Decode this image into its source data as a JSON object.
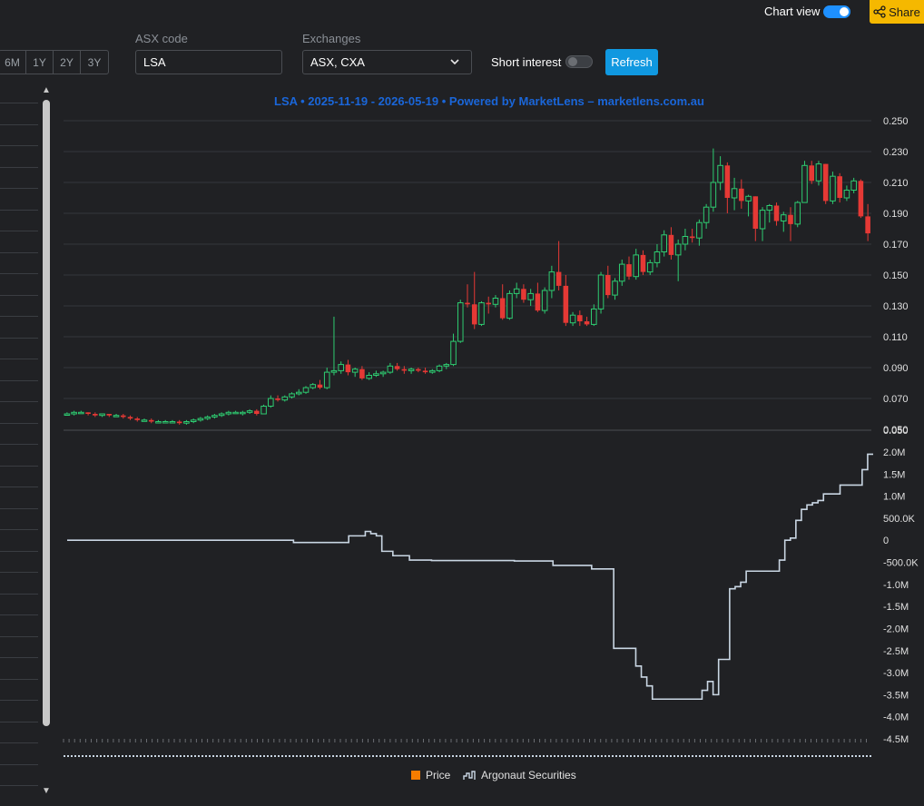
{
  "header": {
    "chart_view_label": "Chart view",
    "chart_view_on": true,
    "share_label": "Share"
  },
  "periods": [
    "6M",
    "1Y",
    "2Y",
    "3Y"
  ],
  "asx_code": {
    "label": "ASX code",
    "value": "LSA"
  },
  "exchanges": {
    "label": "Exchanges",
    "value": "ASX, CXA"
  },
  "short_interest": {
    "label": "Short interest",
    "on": false
  },
  "refresh_label": "Refresh",
  "colors": {
    "accent": "#1098e0",
    "share": "#f5b800",
    "up": "#2ecc71",
    "down": "#e53935",
    "title": "#1a66d9",
    "line": "#c9d6e3"
  },
  "chart_data": {
    "type": "candlestick",
    "title": "LSA • 2025-11-19 - 2026-05-19 • Powered by MarketLens – marketlens.com.au",
    "price_axis": {
      "ylim": [
        0.05,
        0.25
      ],
      "ticks": [
        "0.250",
        "0.230",
        "0.210",
        "0.190",
        "0.170",
        "0.150",
        "0.130",
        "0.110",
        "0.090",
        "0.070",
        "0.050"
      ]
    },
    "volume_axis_tick": "0.050",
    "holder_axis": {
      "ylim": [
        -4500000,
        2000000
      ],
      "ticks": [
        "2.0M",
        "1.5M",
        "1.0M",
        "500.0K",
        "0",
        "-500.0K",
        "-1.0M",
        "-1.5M",
        "-2.0M",
        "-2.5M",
        "-3.0M",
        "-3.5M",
        "-4.0M",
        "-4.5M"
      ]
    },
    "candles": [
      [
        0.06,
        0.061,
        0.059,
        0.06
      ],
      [
        0.06,
        0.062,
        0.059,
        0.061
      ],
      [
        0.061,
        0.062,
        0.06,
        0.061
      ],
      [
        0.061,
        0.061,
        0.059,
        0.06
      ],
      [
        0.06,
        0.061,
        0.058,
        0.059
      ],
      [
        0.059,
        0.06,
        0.058,
        0.06
      ],
      [
        0.06,
        0.06,
        0.058,
        0.059
      ],
      [
        0.059,
        0.06,
        0.058,
        0.059
      ],
      [
        0.059,
        0.06,
        0.057,
        0.058
      ],
      [
        0.058,
        0.059,
        0.056,
        0.057
      ],
      [
        0.057,
        0.058,
        0.055,
        0.056
      ],
      [
        0.056,
        0.057,
        0.055,
        0.056
      ],
      [
        0.056,
        0.057,
        0.054,
        0.055
      ],
      [
        0.055,
        0.056,
        0.054,
        0.055
      ],
      [
        0.055,
        0.056,
        0.054,
        0.055
      ],
      [
        0.055,
        0.056,
        0.054,
        0.055
      ],
      [
        0.055,
        0.056,
        0.053,
        0.054
      ],
      [
        0.054,
        0.056,
        0.053,
        0.055
      ],
      [
        0.055,
        0.057,
        0.054,
        0.056
      ],
      [
        0.056,
        0.058,
        0.055,
        0.057
      ],
      [
        0.057,
        0.059,
        0.056,
        0.058
      ],
      [
        0.058,
        0.06,
        0.057,
        0.059
      ],
      [
        0.059,
        0.061,
        0.058,
        0.06
      ],
      [
        0.06,
        0.062,
        0.059,
        0.061
      ],
      [
        0.061,
        0.062,
        0.06,
        0.061
      ],
      [
        0.061,
        0.062,
        0.059,
        0.061
      ],
      [
        0.061,
        0.063,
        0.06,
        0.062
      ],
      [
        0.062,
        0.063,
        0.059,
        0.06
      ],
      [
        0.06,
        0.066,
        0.06,
        0.065
      ],
      [
        0.065,
        0.072,
        0.064,
        0.07
      ],
      [
        0.07,
        0.072,
        0.068,
        0.069
      ],
      [
        0.069,
        0.072,
        0.068,
        0.071
      ],
      [
        0.071,
        0.074,
        0.07,
        0.073
      ],
      [
        0.073,
        0.076,
        0.072,
        0.074
      ],
      [
        0.074,
        0.078,
        0.073,
        0.077
      ],
      [
        0.077,
        0.08,
        0.076,
        0.079
      ],
      [
        0.079,
        0.082,
        0.076,
        0.077
      ],
      [
        0.077,
        0.09,
        0.076,
        0.087
      ],
      [
        0.087,
        0.123,
        0.085,
        0.088
      ],
      [
        0.088,
        0.094,
        0.086,
        0.092
      ],
      [
        0.092,
        0.095,
        0.085,
        0.087
      ],
      [
        0.087,
        0.09,
        0.084,
        0.089
      ],
      [
        0.089,
        0.091,
        0.082,
        0.083
      ],
      [
        0.083,
        0.087,
        0.082,
        0.085
      ],
      [
        0.085,
        0.088,
        0.084,
        0.086
      ],
      [
        0.086,
        0.088,
        0.084,
        0.087
      ],
      [
        0.087,
        0.093,
        0.086,
        0.091
      ],
      [
        0.091,
        0.093,
        0.088,
        0.089
      ],
      [
        0.089,
        0.091,
        0.086,
        0.088
      ],
      [
        0.088,
        0.09,
        0.086,
        0.089
      ],
      [
        0.089,
        0.09,
        0.087,
        0.088
      ],
      [
        0.088,
        0.09,
        0.086,
        0.087
      ],
      [
        0.087,
        0.089,
        0.086,
        0.088
      ],
      [
        0.088,
        0.092,
        0.087,
        0.091
      ],
      [
        0.091,
        0.093,
        0.089,
        0.092
      ],
      [
        0.092,
        0.112,
        0.091,
        0.107
      ],
      [
        0.107,
        0.134,
        0.106,
        0.132
      ],
      [
        0.132,
        0.144,
        0.129,
        0.131
      ],
      [
        0.131,
        0.152,
        0.115,
        0.118
      ],
      [
        0.118,
        0.133,
        0.117,
        0.132
      ],
      [
        0.132,
        0.136,
        0.125,
        0.131
      ],
      [
        0.131,
        0.137,
        0.129,
        0.135
      ],
      [
        0.135,
        0.144,
        0.121,
        0.122
      ],
      [
        0.122,
        0.14,
        0.121,
        0.138
      ],
      [
        0.138,
        0.145,
        0.135,
        0.141
      ],
      [
        0.141,
        0.144,
        0.132,
        0.134
      ],
      [
        0.134,
        0.141,
        0.13,
        0.138
      ],
      [
        0.138,
        0.145,
        0.126,
        0.127
      ],
      [
        0.127,
        0.142,
        0.125,
        0.14
      ],
      [
        0.14,
        0.156,
        0.135,
        0.152
      ],
      [
        0.152,
        0.172,
        0.14,
        0.143
      ],
      [
        0.143,
        0.15,
        0.117,
        0.119
      ],
      [
        0.119,
        0.126,
        0.117,
        0.124
      ],
      [
        0.124,
        0.127,
        0.117,
        0.12
      ],
      [
        0.12,
        0.123,
        0.117,
        0.118
      ],
      [
        0.118,
        0.131,
        0.117,
        0.128
      ],
      [
        0.128,
        0.152,
        0.125,
        0.15
      ],
      [
        0.15,
        0.156,
        0.135,
        0.137
      ],
      [
        0.137,
        0.148,
        0.134,
        0.146
      ],
      [
        0.146,
        0.16,
        0.143,
        0.157
      ],
      [
        0.157,
        0.162,
        0.147,
        0.149
      ],
      [
        0.149,
        0.167,
        0.147,
        0.163
      ],
      [
        0.163,
        0.166,
        0.15,
        0.152
      ],
      [
        0.152,
        0.16,
        0.15,
        0.158
      ],
      [
        0.158,
        0.17,
        0.155,
        0.165
      ],
      [
        0.165,
        0.179,
        0.162,
        0.176
      ],
      [
        0.176,
        0.181,
        0.16,
        0.163
      ],
      [
        0.163,
        0.173,
        0.146,
        0.17
      ],
      [
        0.17,
        0.18,
        0.166,
        0.175
      ],
      [
        0.175,
        0.18,
        0.171,
        0.174
      ],
      [
        0.174,
        0.186,
        0.169,
        0.184
      ],
      [
        0.184,
        0.196,
        0.18,
        0.194
      ],
      [
        0.194,
        0.232,
        0.191,
        0.21
      ],
      [
        0.21,
        0.227,
        0.205,
        0.221
      ],
      [
        0.221,
        0.223,
        0.19,
        0.2
      ],
      [
        0.2,
        0.213,
        0.192,
        0.206
      ],
      [
        0.206,
        0.212,
        0.193,
        0.198
      ],
      [
        0.198,
        0.202,
        0.188,
        0.201
      ],
      [
        0.201,
        0.201,
        0.172,
        0.18
      ],
      [
        0.18,
        0.194,
        0.172,
        0.192
      ],
      [
        0.192,
        0.196,
        0.184,
        0.195
      ],
      [
        0.195,
        0.197,
        0.182,
        0.185
      ],
      [
        0.185,
        0.191,
        0.178,
        0.189
      ],
      [
        0.189,
        0.194,
        0.172,
        0.183
      ],
      [
        0.183,
        0.198,
        0.181,
        0.197
      ],
      [
        0.197,
        0.224,
        0.197,
        0.221
      ],
      [
        0.221,
        0.224,
        0.209,
        0.211
      ],
      [
        0.211,
        0.224,
        0.208,
        0.222
      ],
      [
        0.222,
        0.222,
        0.196,
        0.198
      ],
      [
        0.198,
        0.217,
        0.196,
        0.214
      ],
      [
        0.214,
        0.216,
        0.197,
        0.2
      ],
      [
        0.2,
        0.208,
        0.198,
        0.205
      ],
      [
        0.205,
        0.213,
        0.203,
        0.211
      ],
      [
        0.211,
        0.212,
        0.187,
        0.188
      ],
      [
        0.188,
        0.196,
        0.172,
        0.177
      ]
    ],
    "holder_steps": [
      [
        0,
        0
      ],
      [
        40,
        0
      ],
      [
        41,
        -50000
      ],
      [
        50,
        -50000
      ],
      [
        51,
        100000
      ],
      [
        54,
        200000
      ],
      [
        55,
        150000
      ],
      [
        56,
        100000
      ],
      [
        57,
        -250000
      ],
      [
        59,
        -350000
      ],
      [
        61,
        -350000
      ],
      [
        62,
        -450000
      ],
      [
        66,
        -460000
      ],
      [
        81,
        -470000
      ],
      [
        87,
        -470000
      ],
      [
        88,
        -570000
      ],
      [
        94,
        -570000
      ],
      [
        95,
        -650000
      ],
      [
        99,
        -2450000
      ],
      [
        102,
        -2450000
      ],
      [
        103,
        -2850000
      ],
      [
        104,
        -3100000
      ],
      [
        105,
        -3300000
      ],
      [
        106,
        -3600000
      ],
      [
        114,
        -3600000
      ],
      [
        115,
        -3400000
      ],
      [
        116,
        -3200000
      ],
      [
        117,
        -3500000
      ],
      [
        118,
        -2700000
      ],
      [
        120,
        -1100000
      ],
      [
        121,
        -1050000
      ],
      [
        122,
        -950000
      ],
      [
        123,
        -700000
      ],
      [
        128,
        -700000
      ],
      [
        129,
        -450000
      ],
      [
        130,
        0
      ],
      [
        131,
        50000
      ],
      [
        132,
        450000
      ],
      [
        133,
        700000
      ],
      [
        134,
        800000
      ],
      [
        135,
        850000
      ],
      [
        136,
        900000
      ],
      [
        137,
        1050000
      ],
      [
        140,
        1250000
      ],
      [
        143,
        1250000
      ],
      [
        144,
        1600000
      ],
      [
        145,
        1950000
      ]
    ],
    "legend": [
      {
        "name": "Price",
        "color": "#f57c00",
        "icon": "square"
      },
      {
        "name": "Argonaut Securities",
        "color": "#c9d6e3",
        "icon": "step-line"
      }
    ]
  }
}
